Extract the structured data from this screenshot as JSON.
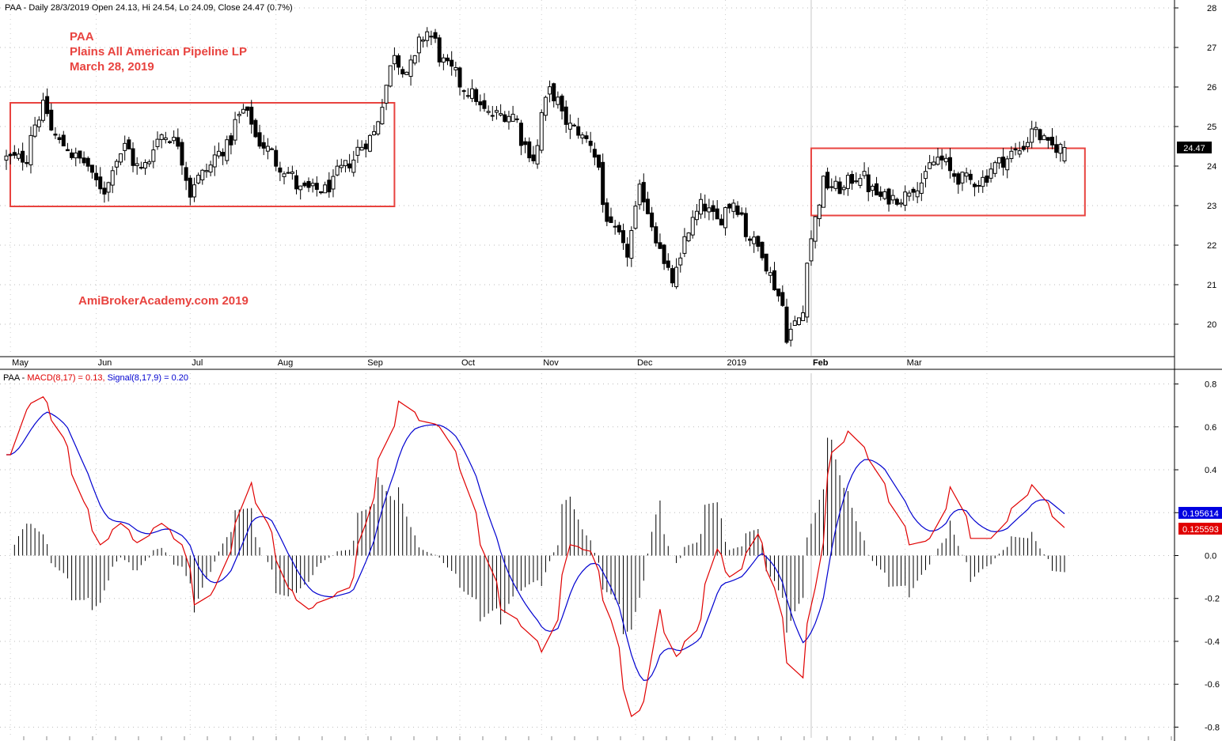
{
  "header": {
    "price": "PAA - Daily 28/3/2019 Open 24.13, Hi 24.54, Lo 24.09, Close 24.47 (0.7%)",
    "ind_prefix": "PAA - ",
    "ind_macd": "MACD(8,17) = 0.13, ",
    "ind_signal": "Signal(8,17,9) = 0.20"
  },
  "annotations": {
    "l1": "PAA",
    "l2": "Plains All American Pipeline LP",
    "l3": "March 28, 2019",
    "l4": "AmiBrokerAcademy.com   2019"
  },
  "price_axis": {
    "min": 19.2,
    "max": 28.2,
    "ticks": [
      "20",
      "21",
      "22",
      "23",
      "24",
      "25",
      "26",
      "27",
      "28"
    ]
  },
  "macd_axis": {
    "min": -0.85,
    "max": 0.85,
    "ticks": [
      "0.8",
      "0.6",
      "0.4",
      "0.2",
      "0.0",
      "-0.2",
      "-0.4",
      "-0.6",
      "-0.8"
    ]
  },
  "months": [
    "May",
    "Jun",
    "Jul",
    "Aug",
    "Sep",
    "Oct",
    "Nov",
    "Dec",
    "2019",
    "Feb",
    "Mar"
  ],
  "last_price_label": "24.47",
  "signal_value_label": "0.195614",
  "macd_value_label": "0.125593",
  "colors": {
    "macd": "#e00000",
    "signal": "#0000d0",
    "box": "#e8433f",
    "candle": "#000000"
  },
  "chart_data": {
    "type": "candlestick",
    "price_knots": [
      [
        "2018-04-06",
        24.2
      ],
      [
        "2018-04-12",
        25.5
      ],
      [
        "2018-04-18",
        24.6
      ],
      [
        "2018-04-26",
        24.1
      ],
      [
        "2018-05-03",
        23.4
      ],
      [
        "2018-05-10",
        24.5
      ],
      [
        "2018-05-16",
        23.9
      ],
      [
        "2018-05-23",
        24.8
      ],
      [
        "2018-05-29",
        24.6
      ],
      [
        "2018-06-01",
        23.3
      ],
      [
        "2018-06-08",
        24.0
      ],
      [
        "2018-06-14",
        24.5
      ],
      [
        "2018-06-20",
        25.4
      ],
      [
        "2018-06-26",
        24.6
      ],
      [
        "2018-07-03",
        24.0
      ],
      [
        "2018-07-10",
        23.4
      ],
      [
        "2018-07-18",
        23.4
      ],
      [
        "2018-07-25",
        24.0
      ],
      [
        "2018-08-01",
        24.6
      ],
      [
        "2018-08-06",
        25.2
      ],
      [
        "2018-08-10",
        26.9
      ],
      [
        "2018-08-15",
        26.4
      ],
      [
        "2018-08-22",
        27.4
      ],
      [
        "2018-08-29",
        26.5
      ],
      [
        "2018-09-05",
        25.9
      ],
      [
        "2018-09-12",
        25.3
      ],
      [
        "2018-09-20",
        25.3
      ],
      [
        "2018-09-27",
        24.2
      ],
      [
        "2018-10-03",
        25.9
      ],
      [
        "2018-10-10",
        25.0
      ],
      [
        "2018-10-17",
        24.6
      ],
      [
        "2018-10-24",
        22.4
      ],
      [
        "2018-10-30",
        21.8
      ],
      [
        "2018-11-03",
        23.9
      ],
      [
        "2018-11-08",
        22.2
      ],
      [
        "2018-11-14",
        21.1
      ],
      [
        "2018-11-19",
        22.2
      ],
      [
        "2018-11-24",
        23.2
      ],
      [
        "2018-11-29",
        22.6
      ],
      [
        "2018-12-05",
        23.1
      ],
      [
        "2018-12-10",
        22.3
      ],
      [
        "2018-12-17",
        21.5
      ],
      [
        "2018-12-24",
        19.7
      ],
      [
        "2018-12-28",
        20.3
      ],
      [
        "2019-01-04",
        23.6
      ],
      [
        "2019-01-11",
        23.4
      ],
      [
        "2019-01-17",
        23.8
      ],
      [
        "2019-01-24",
        23.2
      ],
      [
        "2019-01-31",
        23.2
      ],
      [
        "2019-02-07",
        23.6
      ],
      [
        "2019-02-13",
        24.2
      ],
      [
        "2019-02-20",
        23.7
      ],
      [
        "2019-02-27",
        23.6
      ],
      [
        "2019-03-06",
        24.1
      ],
      [
        "2019-03-13",
        24.4
      ],
      [
        "2019-03-18",
        25.0
      ],
      [
        "2019-03-22",
        24.5
      ],
      [
        "2019-03-28",
        24.47
      ]
    ],
    "macd_knots": [
      [
        "2018-04-02",
        0.47
      ],
      [
        "2018-04-06",
        0.68
      ],
      [
        "2018-04-12",
        0.74
      ],
      [
        "2018-04-19",
        0.55
      ],
      [
        "2018-04-26",
        0.25
      ],
      [
        "2018-05-02",
        0.05
      ],
      [
        "2018-05-09",
        0.15
      ],
      [
        "2018-05-15",
        0.06
      ],
      [
        "2018-05-23",
        0.15
      ],
      [
        "2018-05-30",
        0.05
      ],
      [
        "2018-06-04",
        -0.23
      ],
      [
        "2018-06-11",
        -0.15
      ],
      [
        "2018-06-18",
        0.15
      ],
      [
        "2018-06-22",
        0.34
      ],
      [
        "2018-06-28",
        0.15
      ],
      [
        "2018-07-05",
        -0.15
      ],
      [
        "2018-07-12",
        -0.25
      ],
      [
        "2018-07-19",
        -0.2
      ],
      [
        "2018-07-26",
        -0.15
      ],
      [
        "2018-08-01",
        0.15
      ],
      [
        "2018-08-06",
        0.45
      ],
      [
        "2018-08-13",
        0.72
      ],
      [
        "2018-08-20",
        0.63
      ],
      [
        "2018-08-27",
        0.6
      ],
      [
        "2018-09-03",
        0.4
      ],
      [
        "2018-09-10",
        0.05
      ],
      [
        "2018-09-17",
        -0.25
      ],
      [
        "2018-09-24",
        -0.33
      ],
      [
        "2018-10-01",
        -0.45
      ],
      [
        "2018-10-05",
        -0.3
      ],
      [
        "2018-10-10",
        0.05
      ],
      [
        "2018-10-17",
        0.02
      ],
      [
        "2018-10-24",
        -0.3
      ],
      [
        "2018-10-31",
        -0.75
      ],
      [
        "2018-11-05",
        -0.68
      ],
      [
        "2018-11-09",
        -0.25
      ],
      [
        "2018-11-15",
        -0.47
      ],
      [
        "2018-11-22",
        -0.35
      ],
      [
        "2018-11-29",
        0.03
      ],
      [
        "2018-12-04",
        -0.1
      ],
      [
        "2018-12-08",
        -0.05
      ],
      [
        "2018-12-13",
        0.1
      ],
      [
        "2018-12-19",
        -0.15
      ],
      [
        "2018-12-24",
        -0.5
      ],
      [
        "2018-12-28",
        -0.57
      ],
      [
        "2019-01-02",
        -0.15
      ],
      [
        "2019-01-08",
        0.48
      ],
      [
        "2019-01-14",
        0.58
      ],
      [
        "2019-01-21",
        0.45
      ],
      [
        "2019-01-28",
        0.25
      ],
      [
        "2019-02-04",
        0.05
      ],
      [
        "2019-02-11",
        0.08
      ],
      [
        "2019-02-18",
        0.32
      ],
      [
        "2019-02-25",
        0.08
      ],
      [
        "2019-03-04",
        0.08
      ],
      [
        "2019-03-11",
        0.22
      ],
      [
        "2019-03-18",
        0.33
      ],
      [
        "2019-03-24",
        0.2
      ],
      [
        "2019-03-28",
        0.13
      ]
    ],
    "boxes": [
      {
        "from": "2018-04-01",
        "to": "2018-08-11",
        "low": 22.98,
        "high": 25.6
      },
      {
        "from": "2019-01-01",
        "to": "2019-04-04",
        "low": 22.75,
        "high": 24.45
      }
    ],
    "title": "",
    "xlabel": "",
    "ylabel": ""
  }
}
